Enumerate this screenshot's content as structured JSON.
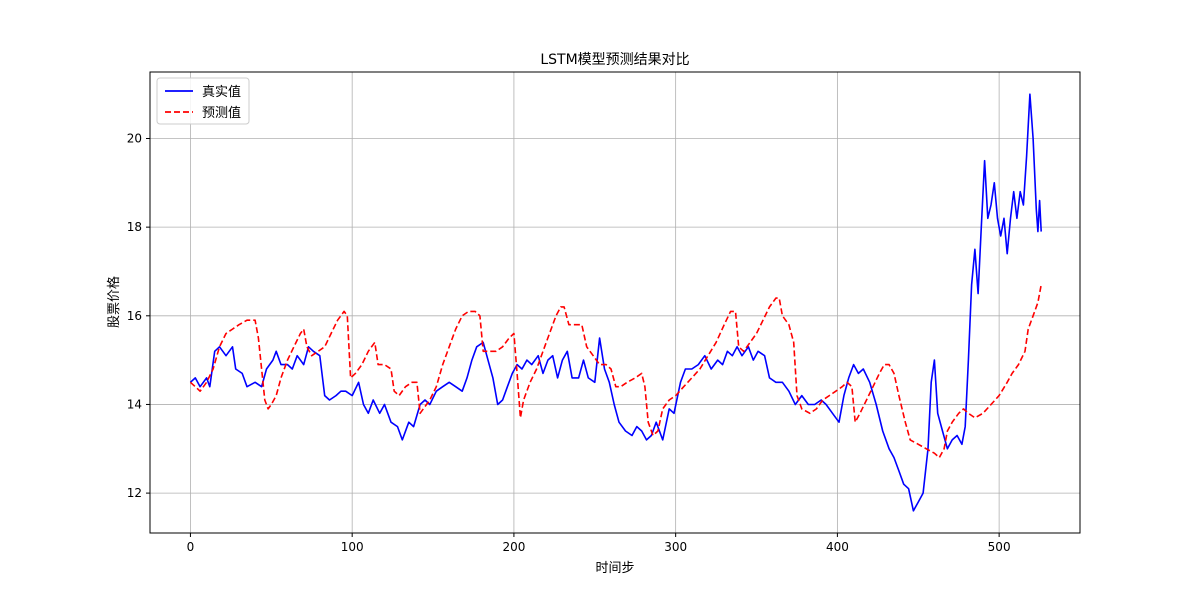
{
  "chart_data": {
    "type": "line",
    "title": "LSTM模型预测结果对比",
    "xlabel": "时间步",
    "ylabel": "股票价格",
    "xlim": [
      -25,
      550
    ],
    "ylim": [
      11.1,
      21.5
    ],
    "xticks": [
      0,
      100,
      200,
      300,
      400,
      500
    ],
    "yticks": [
      12,
      14,
      16,
      18,
      20
    ],
    "grid": true,
    "legend_position": "top-left",
    "series": [
      {
        "name": "真实值",
        "color": "#0000ff",
        "style": "solid",
        "points": [
          [
            0,
            14.5
          ],
          [
            3,
            14.6
          ],
          [
            6,
            14.4
          ],
          [
            10,
            14.6
          ],
          [
            12,
            14.4
          ],
          [
            15,
            15.2
          ],
          [
            18,
            15.3
          ],
          [
            22,
            15.1
          ],
          [
            26,
            15.3
          ],
          [
            28,
            14.8
          ],
          [
            32,
            14.7
          ],
          [
            35,
            14.4
          ],
          [
            40,
            14.5
          ],
          [
            44,
            14.4
          ],
          [
            47,
            14.8
          ],
          [
            51,
            15.0
          ],
          [
            53,
            15.2
          ],
          [
            56,
            14.9
          ],
          [
            60,
            14.9
          ],
          [
            63,
            14.8
          ],
          [
            66,
            15.1
          ],
          [
            70,
            14.9
          ],
          [
            73,
            15.3
          ],
          [
            76,
            15.2
          ],
          [
            80,
            15.1
          ],
          [
            83,
            14.2
          ],
          [
            86,
            14.1
          ],
          [
            90,
            14.2
          ],
          [
            93,
            14.3
          ],
          [
            96,
            14.3
          ],
          [
            100,
            14.2
          ],
          [
            104,
            14.5
          ],
          [
            107,
            14.0
          ],
          [
            110,
            13.8
          ],
          [
            113,
            14.1
          ],
          [
            117,
            13.8
          ],
          [
            120,
            14.0
          ],
          [
            124,
            13.6
          ],
          [
            128,
            13.5
          ],
          [
            131,
            13.2
          ],
          [
            135,
            13.6
          ],
          [
            138,
            13.5
          ],
          [
            142,
            14.0
          ],
          [
            145,
            14.1
          ],
          [
            148,
            14.0
          ],
          [
            152,
            14.3
          ],
          [
            156,
            14.4
          ],
          [
            160,
            14.5
          ],
          [
            164,
            14.4
          ],
          [
            168,
            14.3
          ],
          [
            171,
            14.6
          ],
          [
            174,
            15.0
          ],
          [
            177,
            15.3
          ],
          [
            181,
            15.4
          ],
          [
            184,
            15.0
          ],
          [
            187,
            14.6
          ],
          [
            190,
            14.0
          ],
          [
            193,
            14.1
          ],
          [
            196,
            14.4
          ],
          [
            199,
            14.7
          ],
          [
            202,
            14.9
          ],
          [
            205,
            14.8
          ],
          [
            208,
            15.0
          ],
          [
            211,
            14.9
          ],
          [
            215,
            15.1
          ],
          [
            218,
            14.7
          ],
          [
            221,
            15.0
          ],
          [
            224,
            15.1
          ],
          [
            227,
            14.6
          ],
          [
            230,
            15.0
          ],
          [
            233,
            15.2
          ],
          [
            236,
            14.6
          ],
          [
            240,
            14.6
          ],
          [
            243,
            15.0
          ],
          [
            246,
            14.6
          ],
          [
            250,
            14.5
          ],
          [
            253,
            15.5
          ],
          [
            256,
            14.8
          ],
          [
            259,
            14.5
          ],
          [
            262,
            14.0
          ],
          [
            265,
            13.6
          ],
          [
            269,
            13.4
          ],
          [
            273,
            13.3
          ],
          [
            276,
            13.5
          ],
          [
            279,
            13.4
          ],
          [
            282,
            13.2
          ],
          [
            285,
            13.3
          ],
          [
            288,
            13.6
          ],
          [
            292,
            13.2
          ],
          [
            296,
            13.9
          ],
          [
            299,
            13.8
          ],
          [
            303,
            14.5
          ],
          [
            306,
            14.8
          ],
          [
            310,
            14.8
          ],
          [
            314,
            14.9
          ],
          [
            318,
            15.1
          ],
          [
            322,
            14.8
          ],
          [
            326,
            15.0
          ],
          [
            329,
            14.9
          ],
          [
            332,
            15.2
          ],
          [
            335,
            15.1
          ],
          [
            338,
            15.3
          ],
          [
            341,
            15.1
          ],
          [
            345,
            15.3
          ],
          [
            348,
            15.0
          ],
          [
            351,
            15.2
          ],
          [
            355,
            15.1
          ],
          [
            358,
            14.6
          ],
          [
            362,
            14.5
          ],
          [
            366,
            14.5
          ],
          [
            370,
            14.3
          ],
          [
            374,
            14.0
          ],
          [
            378,
            14.2
          ],
          [
            382,
            14.0
          ],
          [
            386,
            14.0
          ],
          [
            390,
            14.1
          ],
          [
            393,
            14.0
          ],
          [
            397,
            13.8
          ],
          [
            401,
            13.6
          ],
          [
            404,
            14.2
          ],
          [
            407,
            14.6
          ],
          [
            410,
            14.9
          ],
          [
            413,
            14.7
          ],
          [
            416,
            14.8
          ],
          [
            420,
            14.5
          ],
          [
            424,
            14.0
          ],
          [
            428,
            13.4
          ],
          [
            432,
            13.0
          ],
          [
            435,
            12.8
          ],
          [
            438,
            12.5
          ],
          [
            441,
            12.2
          ],
          [
            444,
            12.1
          ],
          [
            447,
            11.6
          ],
          [
            450,
            11.8
          ],
          [
            453,
            12.0
          ],
          [
            456,
            13.0
          ],
          [
            458,
            14.5
          ],
          [
            460,
            15.0
          ],
          [
            462,
            13.8
          ],
          [
            465,
            13.4
          ],
          [
            468,
            13.0
          ],
          [
            471,
            13.2
          ],
          [
            474,
            13.3
          ],
          [
            477,
            13.1
          ],
          [
            479,
            13.5
          ],
          [
            481,
            15.0
          ],
          [
            483,
            16.7
          ],
          [
            485,
            17.5
          ],
          [
            487,
            16.5
          ],
          [
            489,
            18.0
          ],
          [
            491,
            19.5
          ],
          [
            493,
            18.2
          ],
          [
            495,
            18.5
          ],
          [
            497,
            19.0
          ],
          [
            499,
            18.2
          ],
          [
            501,
            17.8
          ],
          [
            503,
            18.2
          ],
          [
            505,
            17.4
          ],
          [
            507,
            18.2
          ],
          [
            509,
            18.8
          ],
          [
            511,
            18.2
          ],
          [
            513,
            18.8
          ],
          [
            515,
            18.5
          ],
          [
            517,
            19.6
          ],
          [
            519,
            21.0
          ],
          [
            521,
            20.0
          ],
          [
            523,
            18.4
          ],
          [
            524,
            17.9
          ],
          [
            525,
            18.6
          ],
          [
            526,
            17.9
          ]
        ]
      },
      {
        "name": "预测值",
        "color": "#ff0000",
        "style": "dashed",
        "points": [
          [
            0,
            14.5
          ],
          [
            3,
            14.4
          ],
          [
            6,
            14.3
          ],
          [
            10,
            14.5
          ],
          [
            14,
            14.8
          ],
          [
            18,
            15.3
          ],
          [
            22,
            15.6
          ],
          [
            26,
            15.7
          ],
          [
            30,
            15.8
          ],
          [
            35,
            15.9
          ],
          [
            40,
            15.9
          ],
          [
            42,
            15.5
          ],
          [
            44,
            14.8
          ],
          [
            46,
            14.1
          ],
          [
            48,
            13.9
          ],
          [
            50,
            14.0
          ],
          [
            53,
            14.2
          ],
          [
            56,
            14.6
          ],
          [
            60,
            15.0
          ],
          [
            64,
            15.3
          ],
          [
            68,
            15.6
          ],
          [
            70,
            15.7
          ],
          [
            72,
            15.3
          ],
          [
            75,
            15.1
          ],
          [
            79,
            15.2
          ],
          [
            83,
            15.3
          ],
          [
            87,
            15.6
          ],
          [
            91,
            15.9
          ],
          [
            95,
            16.1
          ],
          [
            97,
            16.0
          ],
          [
            99,
            14.6
          ],
          [
            102,
            14.7
          ],
          [
            106,
            14.9
          ],
          [
            110,
            15.2
          ],
          [
            114,
            15.4
          ],
          [
            116,
            14.9
          ],
          [
            120,
            14.9
          ],
          [
            124,
            14.8
          ],
          [
            126,
            14.3
          ],
          [
            129,
            14.2
          ],
          [
            133,
            14.4
          ],
          [
            137,
            14.5
          ],
          [
            140,
            14.5
          ],
          [
            142,
            13.8
          ],
          [
            144,
            13.9
          ],
          [
            148,
            14.1
          ],
          [
            152,
            14.4
          ],
          [
            156,
            14.9
          ],
          [
            160,
            15.3
          ],
          [
            164,
            15.7
          ],
          [
            168,
            16.0
          ],
          [
            172,
            16.1
          ],
          [
            176,
            16.1
          ],
          [
            179,
            16.0
          ],
          [
            181,
            15.2
          ],
          [
            185,
            15.2
          ],
          [
            189,
            15.2
          ],
          [
            193,
            15.3
          ],
          [
            197,
            15.5
          ],
          [
            200,
            15.6
          ],
          [
            202,
            14.7
          ],
          [
            204,
            13.7
          ],
          [
            206,
            14.1
          ],
          [
            210,
            14.5
          ],
          [
            214,
            14.8
          ],
          [
            218,
            15.2
          ],
          [
            222,
            15.6
          ],
          [
            226,
            16.0
          ],
          [
            229,
            16.2
          ],
          [
            231,
            16.2
          ],
          [
            234,
            15.8
          ],
          [
            238,
            15.8
          ],
          [
            242,
            15.8
          ],
          [
            245,
            15.3
          ],
          [
            249,
            15.1
          ],
          [
            253,
            14.9
          ],
          [
            257,
            14.9
          ],
          [
            260,
            14.8
          ],
          [
            263,
            14.4
          ],
          [
            266,
            14.4
          ],
          [
            270,
            14.5
          ],
          [
            275,
            14.6
          ],
          [
            279,
            14.7
          ],
          [
            281,
            14.4
          ],
          [
            283,
            13.6
          ],
          [
            286,
            13.3
          ],
          [
            289,
            13.4
          ],
          [
            292,
            13.9
          ],
          [
            296,
            14.1
          ],
          [
            300,
            14.2
          ],
          [
            305,
            14.4
          ],
          [
            310,
            14.6
          ],
          [
            315,
            14.8
          ],
          [
            320,
            15.1
          ],
          [
            325,
            15.4
          ],
          [
            330,
            15.8
          ],
          [
            334,
            16.1
          ],
          [
            337,
            16.1
          ],
          [
            339,
            15.3
          ],
          [
            342,
            15.2
          ],
          [
            346,
            15.4
          ],
          [
            350,
            15.6
          ],
          [
            354,
            15.9
          ],
          [
            358,
            16.2
          ],
          [
            362,
            16.4
          ],
          [
            364,
            16.4
          ],
          [
            366,
            16.0
          ],
          [
            370,
            15.8
          ],
          [
            373,
            15.4
          ],
          [
            375,
            14.2
          ],
          [
            378,
            13.9
          ],
          [
            383,
            13.8
          ],
          [
            387,
            13.9
          ],
          [
            391,
            14.1
          ],
          [
            395,
            14.2
          ],
          [
            399,
            14.3
          ],
          [
            403,
            14.4
          ],
          [
            406,
            14.5
          ],
          [
            409,
            14.4
          ],
          [
            411,
            13.6
          ],
          [
            414,
            13.8
          ],
          [
            418,
            14.1
          ],
          [
            422,
            14.4
          ],
          [
            426,
            14.7
          ],
          [
            429,
            14.9
          ],
          [
            432,
            14.9
          ],
          [
            435,
            14.7
          ],
          [
            438,
            14.2
          ],
          [
            442,
            13.6
          ],
          [
            445,
            13.2
          ],
          [
            450,
            13.1
          ],
          [
            455,
            13.0
          ],
          [
            460,
            12.9
          ],
          [
            463,
            12.8
          ],
          [
            466,
            13.0
          ],
          [
            468,
            13.4
          ],
          [
            471,
            13.6
          ],
          [
            475,
            13.8
          ],
          [
            478,
            13.9
          ],
          [
            481,
            13.8
          ],
          [
            485,
            13.7
          ],
          [
            490,
            13.8
          ],
          [
            495,
            14.0
          ],
          [
            500,
            14.2
          ],
          [
            505,
            14.5
          ],
          [
            508,
            14.7
          ],
          [
            512,
            14.9
          ],
          [
            516,
            15.2
          ],
          [
            518,
            15.7
          ],
          [
            521,
            16.0
          ],
          [
            524,
            16.3
          ],
          [
            526,
            16.7
          ]
        ]
      }
    ]
  }
}
